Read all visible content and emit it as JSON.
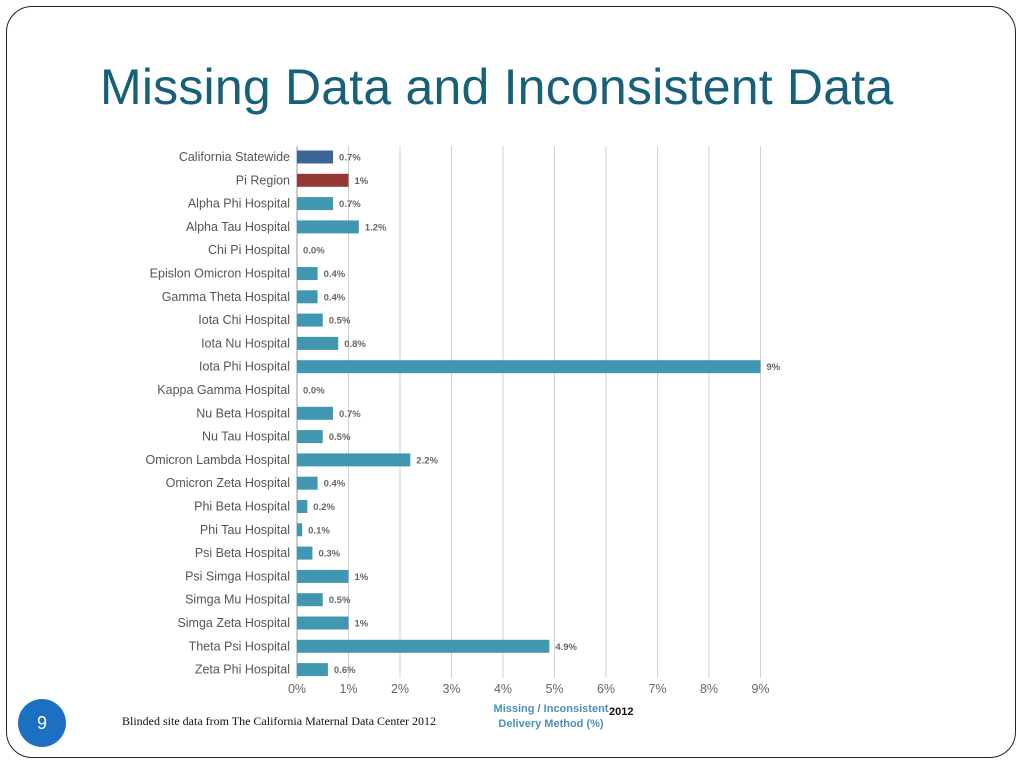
{
  "slide": {
    "title": "Missing Data and Inconsistent Data",
    "page_number": "9",
    "footnote": "Blinded site data from The California Maternal Data Center 2012"
  },
  "chart_data": {
    "type": "bar",
    "orientation": "horizontal",
    "title": "",
    "xlabel_line1": "Missing / Inconsistent",
    "xlabel_line2": "Delivery Method (%)",
    "year_label": "2012",
    "xlim": [
      0,
      9
    ],
    "xticks": [
      "0%",
      "1%",
      "2%",
      "3%",
      "4%",
      "5%",
      "6%",
      "7%",
      "8%",
      "9%"
    ],
    "grid": true,
    "categories": [
      "California Statewide",
      "Pi Region",
      "Alpha Phi Hospital",
      "Alpha Tau Hospital",
      "Chi Pi Hospital",
      "Epislon Omicron Hospital",
      "Gamma Theta Hospital",
      "Iota Chi Hospital",
      "Iota Nu Hospital",
      "Iota Phi Hospital",
      "Kappa Gamma Hospital",
      "Nu Beta Hospital",
      "Nu Tau Hospital",
      "Omicron Lambda Hospital",
      "Omicron Zeta Hospital",
      "Phi Beta Hospital",
      "Phi Tau Hospital",
      "Psi Beta Hospital",
      "Psi Simga Hospital",
      "Simga Mu Hospital",
      "Simga Zeta Hospital",
      "Theta Psi Hospital",
      "Zeta Phi Hospital"
    ],
    "values": [
      0.7,
      1,
      0.7,
      1.2,
      0.0,
      0.4,
      0.4,
      0.5,
      0.8,
      9,
      0.0,
      0.7,
      0.5,
      2.2,
      0.4,
      0.2,
      0.1,
      0.3,
      1,
      0.5,
      1,
      4.9,
      0.6
    ],
    "value_labels": [
      "0.7%",
      "1%",
      "0.7%",
      "1.2%",
      "0.0%",
      "0.4%",
      "0.4%",
      "0.5%",
      "0.8%",
      "9%",
      "0.0%",
      "0.7%",
      "0.5%",
      "2.2%",
      "0.4%",
      "0.2%",
      "0.1%",
      "0.3%",
      "1%",
      "0.5%",
      "1%",
      "4.9%",
      "0.6%"
    ],
    "colors": {
      "statewide": "#3b6497",
      "region": "#953735",
      "hospital": "#4196b0",
      "grid": "#d0d0d0",
      "tick_text": "#666666",
      "category_text": "#555555",
      "value_text": "#666666"
    },
    "bar_color_keys": [
      "statewide",
      "region",
      "hospital",
      "hospital",
      "hospital",
      "hospital",
      "hospital",
      "hospital",
      "hospital",
      "hospital",
      "hospital",
      "hospital",
      "hospital",
      "hospital",
      "hospital",
      "hospital",
      "hospital",
      "hospital",
      "hospital",
      "hospital",
      "hospital",
      "hospital",
      "hospital"
    ]
  }
}
